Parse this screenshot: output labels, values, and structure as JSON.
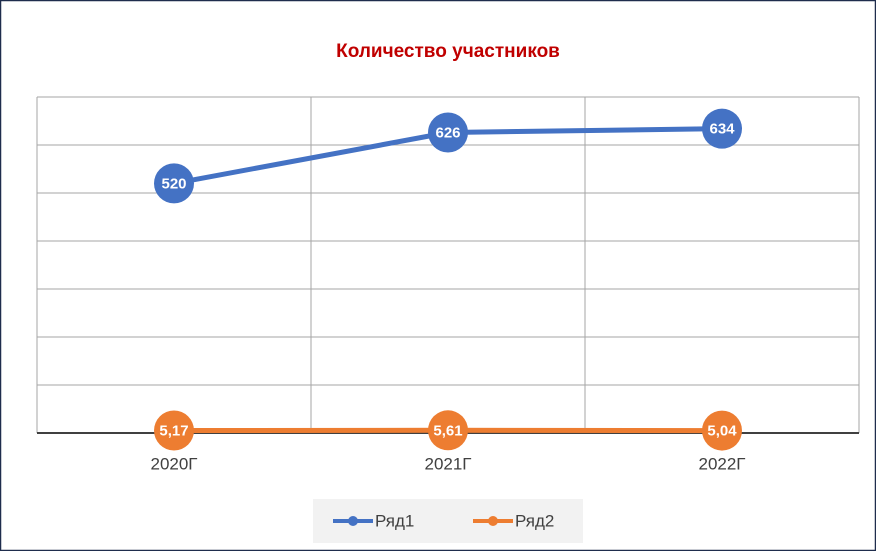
{
  "chart_data": {
    "type": "line",
    "title": "Количество участников",
    "categories": [
      "2020Г",
      "2021Г",
      "2022Г"
    ],
    "series": [
      {
        "name": "Ряд1",
        "color": "#4472c4",
        "values": [
          520,
          626,
          634
        ]
      },
      {
        "name": "Ряд2",
        "color": "#ed7d31",
        "values": [
          5.17,
          5.61,
          5.04
        ],
        "value_labels": [
          "5,17",
          "5,61",
          "5,04"
        ]
      }
    ],
    "ylim": [
      0,
      700
    ],
    "yticks": [
      0,
      100,
      200,
      300,
      400,
      500,
      600,
      700
    ],
    "grid": true,
    "legend": "bottom"
  }
}
